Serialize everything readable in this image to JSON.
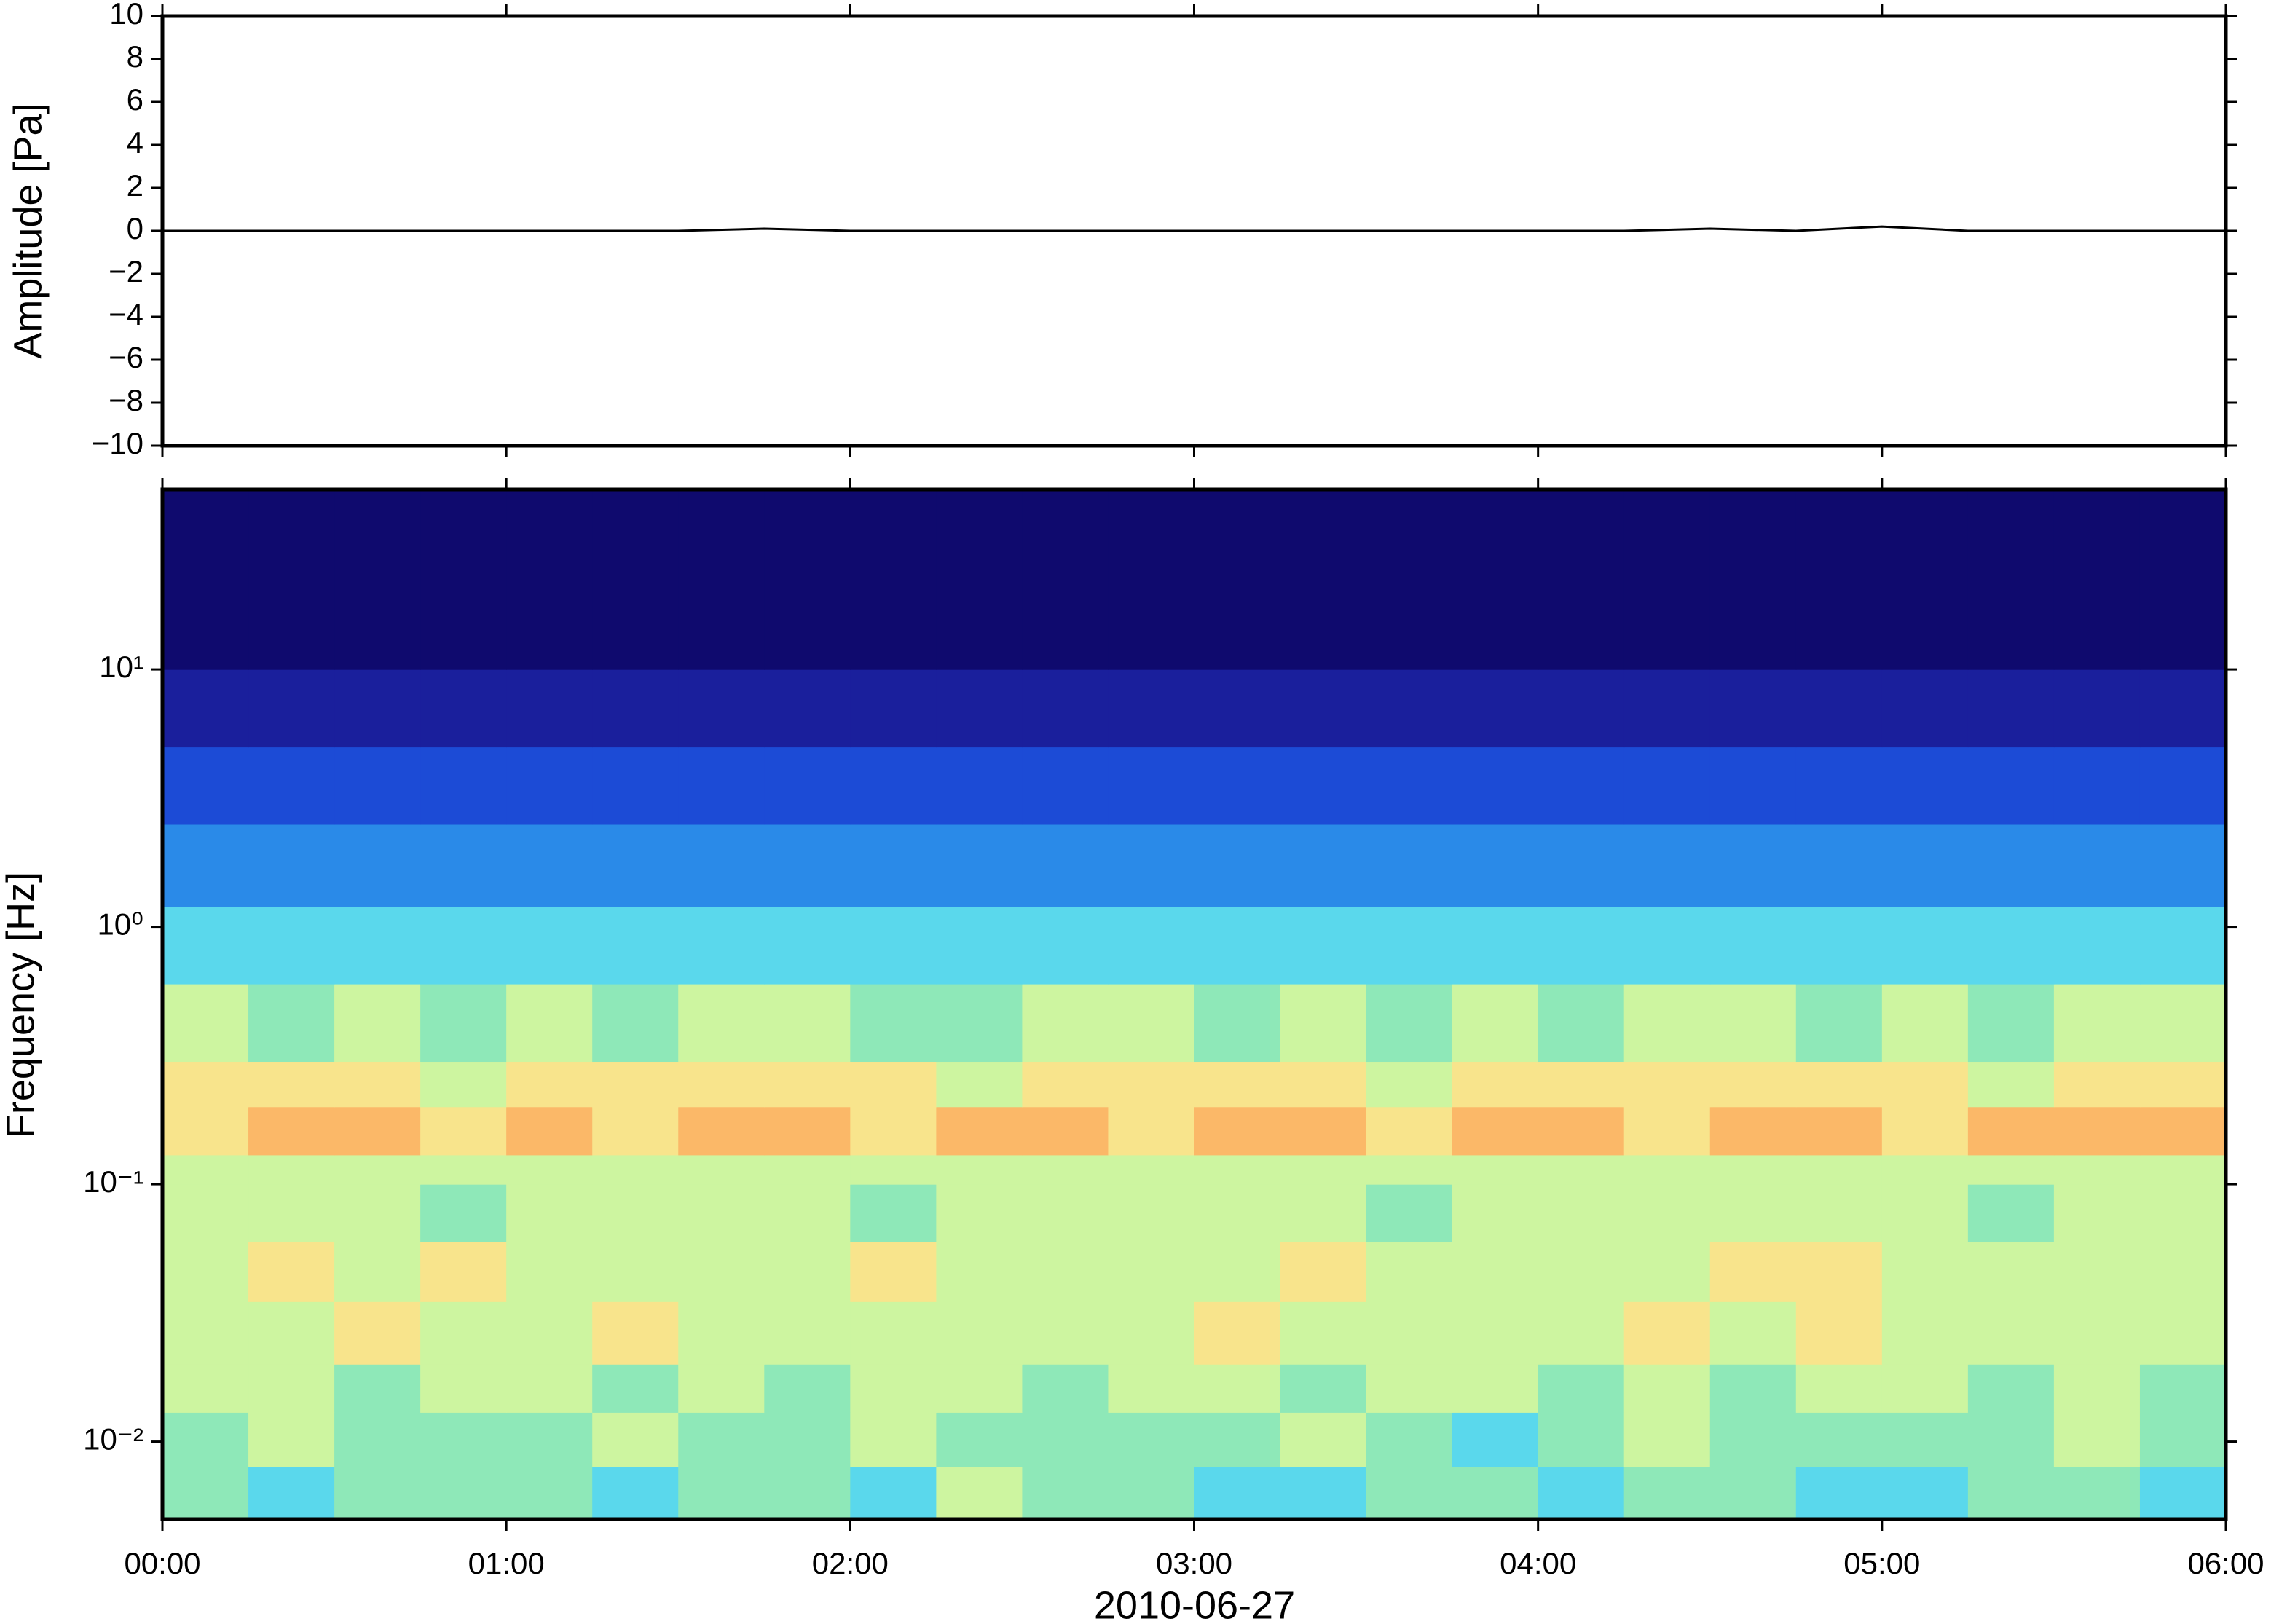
{
  "chart_data": [
    {
      "type": "line",
      "ylabel": "Amplitude [Pa]",
      "line_color": "#000000",
      "xlim": [
        0,
        6
      ],
      "xticks": [
        0,
        1,
        2,
        3,
        4,
        5,
        6
      ],
      "ylim": [
        -10,
        10
      ],
      "yticks": [
        {
          "value": -10,
          "label": "−10"
        },
        {
          "value": -8,
          "label": "−8"
        },
        {
          "value": -6,
          "label": "−6"
        },
        {
          "value": -4,
          "label": "−4"
        },
        {
          "value": -2,
          "label": "−2"
        },
        0,
        2,
        4,
        6,
        8,
        10
      ],
      "x": [
        0,
        0.25,
        0.5,
        0.75,
        1,
        1.25,
        1.5,
        1.75,
        2,
        2.25,
        2.5,
        2.75,
        3,
        3.25,
        3.5,
        3.75,
        4,
        4.25,
        4.5,
        4.75,
        5,
        5.25,
        5.5,
        5.75,
        6
      ],
      "values": [
        0,
        0,
        0,
        0,
        0,
        0,
        0,
        0.1,
        0,
        0,
        0,
        0,
        0,
        0,
        0,
        0,
        0,
        0,
        0.1,
        0,
        0.2,
        0,
        0,
        0,
        0
      ]
    },
    {
      "type": "heatmap",
      "ylabel": "Frequency [Hz]",
      "xlabel": "2010-06-27",
      "log_y": true,
      "xlim": [
        0,
        6
      ],
      "xticks": [
        {
          "value": 0,
          "label": "00:00"
        },
        {
          "value": 1,
          "label": "01:00"
        },
        {
          "value": 2,
          "label": "02:00"
        },
        {
          "value": 3,
          "label": "03:00"
        },
        {
          "value": 4,
          "label": "04:00"
        },
        {
          "value": 5,
          "label": "05:00"
        },
        {
          "value": 6,
          "label": "06:00"
        }
      ],
      "ylim": [
        0.005,
        50
      ],
      "yticks": [
        {
          "value": 0.01,
          "label": "10⁻²"
        },
        {
          "value": 0.1,
          "label": "10⁻¹"
        },
        {
          "value": 1,
          "label": "10⁰"
        },
        {
          "value": 10,
          "label": "10¹"
        }
      ],
      "zlim": [
        0,
        1
      ],
      "colormap": [
        "#0f0a6e",
        "#1a1f9c",
        "#1c4bd6",
        "#2a8ae8",
        "#5ad8ec",
        "#8ee8b8",
        "#cdf5a0",
        "#f8e48c",
        "#fbb868",
        "#f28c48"
      ],
      "xbins": [
        0,
        0.25,
        0.5,
        0.75,
        1,
        1.25,
        1.5,
        1.75,
        2,
        2.25,
        2.5,
        2.75,
        3,
        3.25,
        3.5,
        3.75,
        4,
        4.25,
        4.5,
        4.75,
        5,
        5.25,
        5.5,
        5.75,
        6
      ],
      "ybins": [
        0.005,
        0.008,
        0.013,
        0.02,
        0.035,
        0.06,
        0.1,
        0.13,
        0.2,
        0.3,
        0.6,
        1.2,
        2.5,
        5,
        10,
        50
      ],
      "values": [
        [
          0.52,
          0.45,
          0.55,
          0.5,
          0.58,
          0.48,
          0.52,
          0.55,
          0.46,
          0.6,
          0.5,
          0.52,
          0.44,
          0.48,
          0.55,
          0.5,
          0.42,
          0.52,
          0.58,
          0.48,
          0.45,
          0.55,
          0.5,
          0.46
        ],
        [
          0.55,
          0.6,
          0.52,
          0.58,
          0.55,
          0.62,
          0.5,
          0.56,
          0.6,
          0.54,
          0.5,
          0.58,
          0.52,
          0.6,
          0.55,
          0.48,
          0.56,
          0.6,
          0.52,
          0.58,
          0.5,
          0.56,
          0.6,
          0.52
        ],
        [
          0.62,
          0.66,
          0.58,
          0.6,
          0.64,
          0.56,
          0.62,
          0.58,
          0.66,
          0.6,
          0.55,
          0.62,
          0.6,
          0.58,
          0.65,
          0.6,
          0.56,
          0.62,
          0.58,
          0.64,
          0.6,
          0.57,
          0.62,
          0.58
        ],
        [
          0.68,
          0.64,
          0.7,
          0.62,
          0.66,
          0.72,
          0.6,
          0.66,
          0.64,
          0.68,
          0.62,
          0.66,
          0.7,
          0.64,
          0.6,
          0.68,
          0.66,
          0.72,
          0.64,
          0.7,
          0.62,
          0.66,
          0.64,
          0.6
        ],
        [
          0.66,
          0.7,
          0.64,
          0.74,
          0.62,
          0.66,
          0.68,
          0.64,
          0.7,
          0.66,
          0.68,
          0.62,
          0.66,
          0.7,
          0.64,
          0.68,
          0.66,
          0.64,
          0.7,
          0.78,
          0.66,
          0.62,
          0.68,
          0.64
        ],
        [
          0.62,
          0.6,
          0.64,
          0.58,
          0.62,
          0.66,
          0.6,
          0.62,
          0.58,
          0.64,
          0.62,
          0.6,
          0.66,
          0.62,
          0.58,
          0.64,
          0.6,
          0.62,
          0.66,
          0.6,
          0.62,
          0.58,
          0.64,
          0.6
        ],
        [
          0.6,
          0.64,
          0.62,
          0.66,
          0.6,
          0.62,
          0.64,
          0.6,
          0.66,
          0.62,
          0.6,
          0.64,
          0.62,
          0.6,
          0.66,
          0.62,
          0.64,
          0.6,
          0.62,
          0.66,
          0.6,
          0.64,
          0.62,
          0.6
        ],
        [
          0.78,
          0.82,
          0.8,
          0.76,
          0.82,
          0.78,
          0.8,
          0.84,
          0.78,
          0.8,
          0.82,
          0.76,
          0.8,
          0.82,
          0.78,
          0.8,
          0.84,
          0.78,
          0.8,
          0.82,
          0.78,
          0.8,
          0.84,
          0.8
        ],
        [
          0.72,
          0.7,
          0.74,
          0.68,
          0.72,
          0.7,
          0.74,
          0.72,
          0.7,
          0.68,
          0.72,
          0.74,
          0.7,
          0.72,
          0.68,
          0.72,
          0.7,
          0.74,
          0.72,
          0.7,
          0.72,
          0.68,
          0.74,
          0.7
        ],
        [
          0.6,
          0.58,
          0.62,
          0.56,
          0.6,
          0.58,
          0.6,
          0.62,
          0.56,
          0.58,
          0.6,
          0.62,
          0.58,
          0.6,
          0.56,
          0.6,
          0.58,
          0.62,
          0.6,
          0.56,
          0.6,
          0.58,
          0.62,
          0.6
        ],
        [
          0.46,
          0.44,
          0.48,
          0.42,
          0.46,
          0.44,
          0.46,
          0.42,
          0.48,
          0.44,
          0.46,
          0.44,
          0.42,
          0.46,
          0.44,
          0.48,
          0.46,
          0.42,
          0.44,
          0.46,
          0.48,
          0.44,
          0.46,
          0.44
        ],
        [
          0.34,
          0.36,
          0.32,
          0.35,
          0.33,
          0.36,
          0.34,
          0.32,
          0.36,
          0.34,
          0.35,
          0.33,
          0.34,
          0.36,
          0.32,
          0.34,
          0.35,
          0.33,
          0.36,
          0.34,
          0.32,
          0.35,
          0.34,
          0.36
        ],
        [
          0.22,
          0.24,
          0.2,
          0.22,
          0.23,
          0.21,
          0.22,
          0.24,
          0.2,
          0.22,
          0.21,
          0.23,
          0.22,
          0.2,
          0.24,
          0.22,
          0.21,
          0.23,
          0.22,
          0.24,
          0.2,
          0.22,
          0.23,
          0.21
        ],
        [
          0.12,
          0.13,
          0.11,
          0.12,
          0.14,
          0.12,
          0.11,
          0.13,
          0.12,
          0.11,
          0.13,
          0.12,
          0.14,
          0.12,
          0.11,
          0.13,
          0.12,
          0.14,
          0.11,
          0.12,
          0.13,
          0.12,
          0.11,
          0.13
        ],
        [
          0.02,
          0.03,
          0.02,
          0.02,
          0.03,
          0.02,
          0.02,
          0.02,
          0.03,
          0.02,
          0.02,
          0.03,
          0.02,
          0.02,
          0.02,
          0.03,
          0.02,
          0.02,
          0.03,
          0.02,
          0.02,
          0.02,
          0.03,
          0.02
        ]
      ]
    }
  ]
}
